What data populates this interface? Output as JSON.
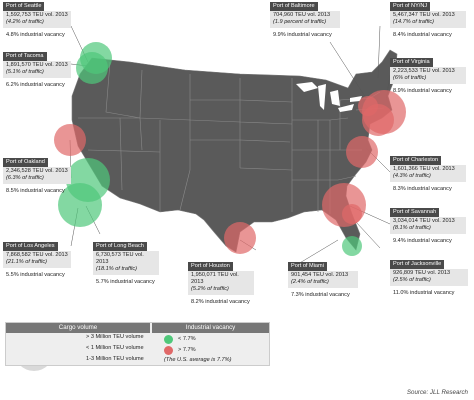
{
  "ports": [
    {
      "id": "seattle",
      "name": "Port of Seattle",
      "teu": "1,592,753 TEU vol. 2013",
      "share": "(4.2% of traffic)",
      "vacancy": "4.8% industrial vacancy",
      "cargo": "large",
      "status": "low"
    },
    {
      "id": "tacoma",
      "name": "Port of Tacoma",
      "teu": "1,891,570 TEU vol. 2013",
      "share": "(5.1% of traffic)",
      "vacancy": "6.2% industrial vacancy",
      "cargo": "large",
      "status": "low"
    },
    {
      "id": "oakland",
      "name": "Port of Oakland",
      "teu": "2,346,528 TEU vol. 2013",
      "share": "(6.3% of traffic)",
      "vacancy": "8.5% industrial vacancy",
      "cargo": "large",
      "status": "high"
    },
    {
      "id": "losangeles",
      "name": "Port of Los Angeles",
      "teu": "7,868,582 TEU vol. 2013",
      "share": "(21.1% of traffic)",
      "vacancy": "5.5% industrial vacancy",
      "cargo": "xlarge",
      "status": "low"
    },
    {
      "id": "longbeach",
      "name": "Port of Long  Beach",
      "teu": "6,730,573 TEU vol. 2013",
      "share": "(18.1% of traffic)",
      "vacancy": "5.7% industrial vacancy",
      "cargo": "xlarge",
      "status": "low"
    },
    {
      "id": "houston",
      "name": "Port of Houston",
      "teu": "1,950,071 TEU vol. 2013",
      "share": "(5.2% of traffic)",
      "vacancy": "8.2% industrial vacancy",
      "cargo": "large",
      "status": "high"
    },
    {
      "id": "baltimore",
      "name": "Port of Baltimore",
      "teu": "704,960 TEU vol. 2013",
      "share": "(1.9 percent of traffic)",
      "vacancy": "9.9% industrial vacancy",
      "cargo": "small",
      "status": "high"
    },
    {
      "id": "nynj",
      "name": "Port of NY/NJ",
      "teu": "5,467,347 TEU vol. 2013",
      "share": "(14.7% of traffic)",
      "vacancy": "8.4% industrial vacancy",
      "cargo": "xlarge",
      "status": "high"
    },
    {
      "id": "virginia",
      "name": "Port of Virginia",
      "teu": "2,223,533 TEU vol. 2013",
      "share": "(6% of traffic)",
      "vacancy": "8.9% industrial vacancy",
      "cargo": "large",
      "status": "high"
    },
    {
      "id": "charleston",
      "name": "Port of Charleston",
      "teu": "1,601,366 TEU vol. 2013",
      "share": "(4.3% of traffic)",
      "vacancy": "8.3% industrial vacancy",
      "cargo": "large",
      "status": "high"
    },
    {
      "id": "savannah",
      "name": "Port of Savannah",
      "teu": "3,034,014 TEU vol. 2013",
      "share": "(8.1% of traffic)",
      "vacancy": "9.4% industrial vacancy",
      "cargo": "xlarge",
      "status": "high"
    },
    {
      "id": "jacksonville",
      "name": "Port of Jacksonville",
      "teu": "926,809 TEU vol. 2013",
      "share": "(2.5% of traffic)",
      "vacancy": "11.0% industrial vacancy",
      "cargo": "small",
      "status": "high"
    },
    {
      "id": "miami",
      "name": "Port of Miami",
      "teu": "901,454 TEU vol. 2013",
      "share": "(2.4% of traffic)",
      "vacancy": "7.3% industrial vacancy",
      "cargo": "small",
      "status": "low"
    }
  ],
  "legend": {
    "cargo_title": "Cargo volume",
    "vacancy_title": "Industrial vacancy",
    "cargo_items": [
      "> 3 Million TEU volume",
      "< 1 Million TEU volume",
      "1-3 Million TEU volume"
    ],
    "vacancy_items": [
      "< 7.7%",
      "> 7.7%"
    ],
    "note": "(The U.S. average is 7.7%)"
  },
  "source": "Source: JLL Research",
  "colors": {
    "land": "#5a5a5a",
    "border": "#8a8a8a",
    "low": "#4fc87a",
    "high": "#e06868",
    "card_header": "#4a4a4a",
    "card_body": "#e6e6e6"
  }
}
